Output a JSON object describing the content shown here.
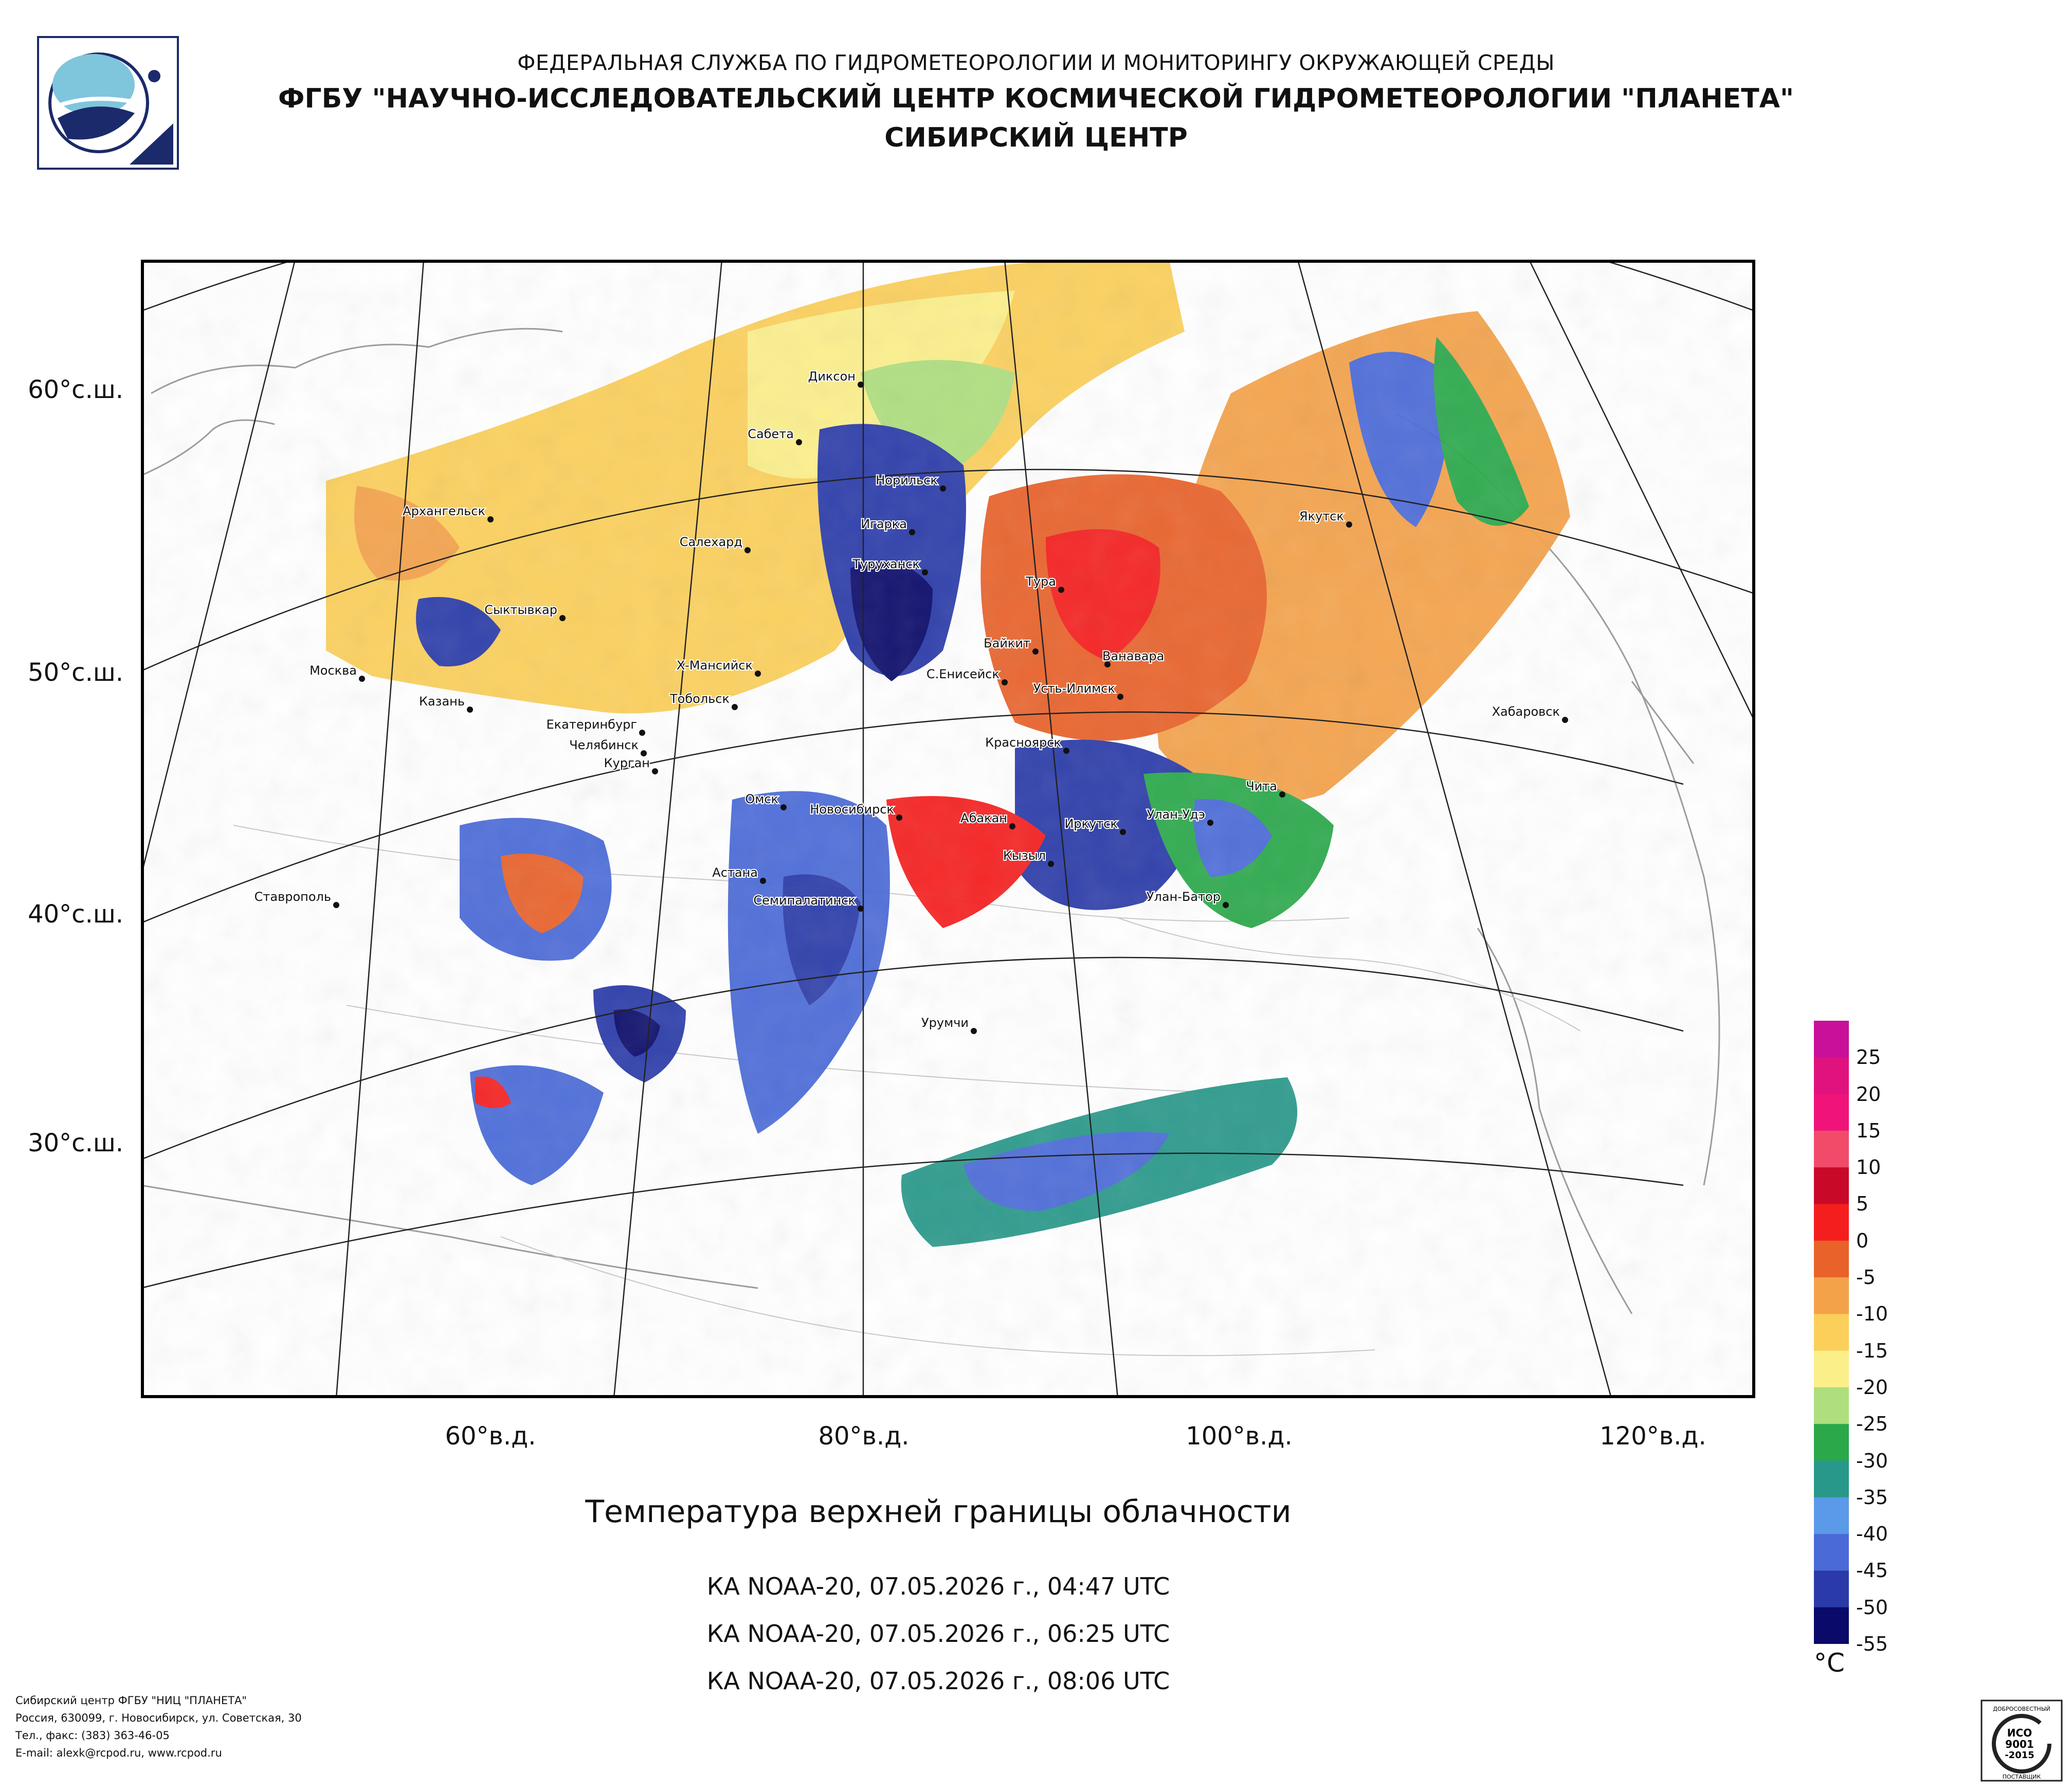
{
  "header": {
    "line1": "ФЕДЕРАЛЬНАЯ СЛУЖБА ПО ГИДРОМЕТЕОРОЛОГИИ И МОНИТОРИНГУ ОКРУЖАЮЩЕЙ СРЕДЫ",
    "line2": "ФГБУ \"НАУЧНО-ИССЛЕДОВАТЕЛЬСКИЙ ЦЕНТР КОСМИЧЕСКОЙ ГИДРОМЕТЕОРОЛОГИИ \"ПЛАНЕТА\"",
    "line3": "СИБИРСКИЙ ЦЕНТР"
  },
  "map": {
    "lat_labels": [
      "60°с.ш.",
      "50°с.ш.",
      "40°с.ш.",
      "30°с.ш."
    ],
    "lon_labels": [
      "60°в.д.",
      "80°в.д.",
      "100°в.д.",
      "120°в.д."
    ],
    "cities": [
      "Диксон",
      "Сабета",
      "Норильск",
      "Архангельск",
      "Салехард",
      "Игарка",
      "Якутск",
      "Туруханск",
      "Тура",
      "Сыктывкар",
      "Байкит",
      "Ванавара",
      "Москва",
      "Х-Мансийск",
      "С.Енисейск",
      "Усть-Илимск",
      "Казань",
      "Тобольск",
      "Хабаровск",
      "Екатеринбург",
      "Красноярск",
      "Челябинск",
      "Курган",
      "Чита",
      "Омск",
      "Новосибирск",
      "Абакан",
      "Улан-Удэ",
      "Иркутск",
      "Кызыл",
      "Астана",
      "Ставрополь",
      "Семипалатинск",
      "Улан-Батор",
      "Урумчи"
    ]
  },
  "caption": "Температура верхней границы облачности",
  "satellites": [
    "КА NOAA-20, 07.05.2026 г., 04:47 UTC",
    "КА NOAA-20, 07.05.2026 г., 06:25 UTC",
    "КА NOAA-20, 07.05.2026 г., 08:06 UTC"
  ],
  "legend": {
    "unit": "°C",
    "ticks": [
      "25",
      "20",
      "15",
      "10",
      "5",
      "0",
      "-5",
      "-10",
      "-15",
      "-20",
      "-25",
      "-30",
      "-35",
      "-40",
      "-45",
      "-50",
      "-55"
    ],
    "colors": [
      "#c8109a",
      "#e0127e",
      "#f0147a",
      "#f24b6a",
      "#c80a28",
      "#f51e1e",
      "#e8622a",
      "#f4a24a",
      "#fbcf5a",
      "#fbef8a",
      "#aede7e",
      "#2aa84a",
      "#28988a",
      "#5a9ae8",
      "#4a6ad8",
      "#2a3aa8",
      "#0a0a6a"
    ]
  },
  "footer": {
    "line1": "Сибирский центр ФГБУ \"НИЦ \"ПЛАНЕТА\"",
    "line2": "Россия, 630099, г. Новосибирск, ул. Советская, 30",
    "line3": "Тел., факс: (383) 363-46-05",
    "line4": "E-mail: alexk@rcpod.ru, www.rcpod.ru"
  },
  "iso_badge": {
    "line1": "ДОБРОСОВЕСТНЫЙ",
    "line2": "ИСО",
    "line3": "9001",
    "line4": "-2015",
    "line5": "ПОСТАВЩИК"
  }
}
